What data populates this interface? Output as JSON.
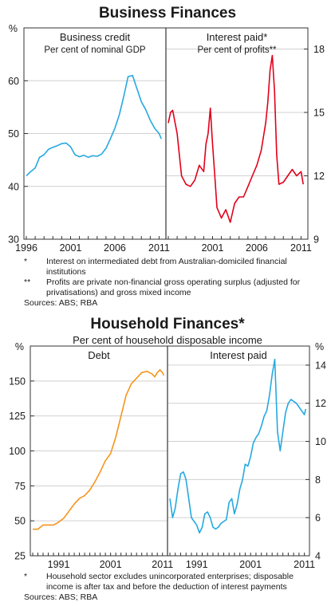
{
  "business": {
    "title": "Business Finances",
    "notes": [
      {
        "marker": "*",
        "text": "Interest on intermediated debt from Australian-domiciled financial institutions"
      },
      {
        "marker": "**",
        "text": "Profits are private non-financial gross operating surplus (adjusted for privatisations) and gross mixed income"
      }
    ],
    "sources": "Sources: ABS; RBA"
  },
  "household": {
    "title": "Household Finances*",
    "subtitle": "Per cent of household disposable income",
    "notes": [
      {
        "marker": "*",
        "text": "Household sector excludes unincorporated enterprises; disposable income is after tax and before the deduction of interest payments"
      }
    ],
    "sources": "Sources: ABS; RBA"
  },
  "chart_data": [
    {
      "type": "line",
      "panels": [
        {
          "title": "Business credit",
          "subtitle": "Per cent of nominal GDP",
          "axis": "left",
          "unit": "%",
          "ylim": [
            30,
            70
          ],
          "yticks": [
            30,
            40,
            50,
            60
          ],
          "xlim": [
            1996,
            2011.5
          ],
          "xticks": [
            1996,
            2001,
            2006,
            2011
          ],
          "color": "#26a9e0",
          "series": [
            {
              "x": [
                1996,
                1996.5,
                1997,
                1997.5,
                1998,
                1998.5,
                1999,
                1999.5,
                2000,
                2000.5,
                2001,
                2001.5,
                2002,
                2002.5,
                2003,
                2003.5,
                2004,
                2004.5,
                2005,
                2005.5,
                2006,
                2006.5,
                2007,
                2007.5,
                2008,
                2008.5,
                2009,
                2009.5,
                2010,
                2010.5,
                2011,
                2011.25
              ],
              "y": [
                42,
                42.8,
                43.5,
                45.5,
                46,
                47,
                47.4,
                47.7,
                48.1,
                48.2,
                47.5,
                46,
                45.6,
                45.9,
                45.5,
                45.8,
                45.7,
                46.1,
                47.2,
                49,
                51,
                53.5,
                57,
                60.8,
                61,
                58.5,
                56,
                54.5,
                52.5,
                51,
                50,
                49
              ]
            }
          ]
        },
        {
          "title": "Interest paid*",
          "subtitle": "Per cent of profits**",
          "axis": "right",
          "unit": "",
          "ylim": [
            9,
            19
          ],
          "yticks": [
            9,
            12,
            15,
            18
          ],
          "xlim": [
            1996,
            2011.5
          ],
          "xticks": [
            2001,
            2006,
            2011
          ],
          "color": "#e2001a",
          "series": [
            {
              "x": [
                1996,
                1996.25,
                1996.5,
                1997,
                1997.5,
                1998,
                1998.5,
                1999,
                1999.5,
                2000,
                2000.25,
                2000.5,
                2000.75,
                2001,
                2001.25,
                2001.5,
                2002,
                2002.5,
                2003,
                2003.5,
                2004,
                2004.5,
                2005,
                2005.5,
                2006,
                2006.5,
                2007,
                2007.25,
                2007.5,
                2007.75,
                2008,
                2008.25,
                2008.5,
                2009,
                2009.5,
                2010,
                2010.5,
                2011,
                2011.25
              ],
              "y": [
                14.5,
                15,
                15.1,
                14,
                12,
                11.6,
                11.5,
                11.8,
                12.5,
                12.2,
                13.5,
                14,
                15.2,
                13.5,
                12,
                10.5,
                10,
                10.4,
                9.8,
                10.7,
                11,
                11,
                11.5,
                12,
                12.5,
                13.2,
                14.5,
                15.5,
                17,
                17.7,
                16,
                13,
                11.6,
                11.7,
                12,
                12.3,
                12,
                12.2,
                11.6
              ]
            }
          ]
        }
      ]
    },
    {
      "type": "line",
      "panels": [
        {
          "title": "Debt",
          "subtitle": "",
          "axis": "left",
          "unit": "%",
          "ylim": [
            25,
            175
          ],
          "yticks": [
            25,
            50,
            75,
            100,
            125,
            150
          ],
          "xlim": [
            1986,
            2011.5
          ],
          "xticks": [
            1991,
            2001,
            2011
          ],
          "color": "#f7941d",
          "series": [
            {
              "x": [
                1986,
                1987,
                1988,
                1989,
                1990,
                1991,
                1992,
                1993,
                1994,
                1995,
                1996,
                1997,
                1998,
                1999,
                2000,
                2001,
                2002,
                2003,
                2004,
                2005,
                2006,
                2007,
                2008,
                2009,
                2009.5,
                2010,
                2010.5,
                2011,
                2011.25
              ],
              "y": [
                44,
                44,
                47,
                47,
                47,
                49,
                52,
                57,
                62,
                66,
                68,
                72,
                78,
                85,
                93,
                98,
                110,
                125,
                140,
                148,
                152,
                156,
                157,
                155,
                153,
                156,
                158,
                156,
                154
              ]
            }
          ]
        },
        {
          "title": "Interest paid",
          "subtitle": "",
          "axis": "right",
          "unit": "%",
          "ylim": [
            4,
            15
          ],
          "yticks": [
            4,
            6,
            8,
            10,
            12,
            14
          ],
          "xlim": [
            1986,
            2011.5
          ],
          "xticks": [
            1991,
            2001,
            2011
          ],
          "color": "#26a9e0",
          "series": [
            {
              "x": [
                1986,
                1986.5,
                1987,
                1987.5,
                1988,
                1988.5,
                1989,
                1989.5,
                1990,
                1990.5,
                1991,
                1991.5,
                1992,
                1992.5,
                1993,
                1993.5,
                1994,
                1994.5,
                1995,
                1995.5,
                1996,
                1996.5,
                1997,
                1997.5,
                1998,
                1998.5,
                1999,
                1999.5,
                2000,
                2000.5,
                2001,
                2001.5,
                2002,
                2002.5,
                2003,
                2003.5,
                2004,
                2004.5,
                2005,
                2005.5,
                2006,
                2006.5,
                2007,
                2007.5,
                2008,
                2008.5,
                2009,
                2009.5,
                2010,
                2010.5,
                2011,
                2011.25
              ],
              "y": [
                7,
                6,
                6.5,
                7.5,
                8.3,
                8.4,
                8,
                7,
                6,
                5.8,
                5.6,
                5.2,
                5.5,
                6.2,
                6.3,
                6,
                5.5,
                5.4,
                5.5,
                5.7,
                5.8,
                5.9,
                6.8,
                7,
                6.2,
                6.7,
                7.5,
                8,
                8.8,
                8.7,
                9.2,
                9.9,
                10.2,
                10.4,
                10.8,
                11.3,
                11.6,
                12.4,
                13.5,
                14.3,
                10.5,
                9.5,
                10.5,
                11.5,
                12,
                12.2,
                12.1,
                12,
                11.8,
                11.6,
                11.4,
                11.7
              ]
            }
          ]
        }
      ]
    }
  ]
}
